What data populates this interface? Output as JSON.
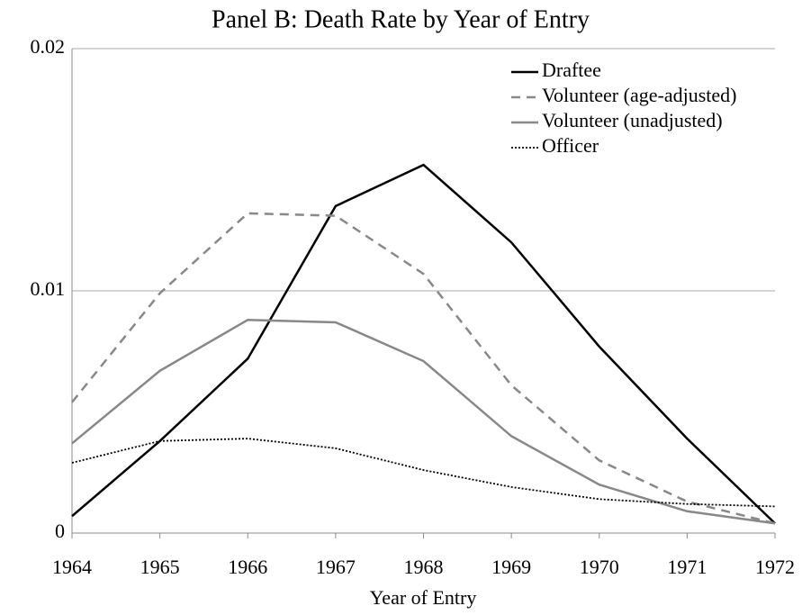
{
  "chart_data": {
    "type": "line",
    "title": "Panel B: Death Rate by Year of Entry",
    "x_label": "Year of Entry",
    "x": [
      1964,
      1965,
      1966,
      1967,
      1968,
      1969,
      1970,
      1971,
      1972
    ],
    "xlim": [
      1964,
      1972
    ],
    "xticks": [
      1964,
      1965,
      1966,
      1967,
      1968,
      1969,
      1970,
      1971,
      1972
    ],
    "ylim": [
      0,
      0.02
    ],
    "yticks": [
      0,
      0.01,
      0.02
    ],
    "grid": true,
    "legend": "top-right",
    "series": [
      {
        "name": "Draftee",
        "color": "#000000",
        "dash": "solid",
        "values": [
          0.0007,
          0.0038,
          0.0072,
          0.0135,
          0.0152,
          0.012,
          0.0077,
          0.0039,
          0.0004
        ]
      },
      {
        "name": "Volunteer (age-adjusted)",
        "color": "#888888",
        "dash": "dashed",
        "values": [
          0.0054,
          0.0099,
          0.0132,
          0.0131,
          0.0107,
          0.0061,
          0.003,
          0.0013,
          0.0004
        ]
      },
      {
        "name": "Volunteer (unadjusted)",
        "color": "#888888",
        "dash": "solid",
        "values": [
          0.0037,
          0.0067,
          0.0088,
          0.0087,
          0.0071,
          0.004,
          0.002,
          0.0009,
          0.0004
        ]
      },
      {
        "name": "Officer",
        "color": "#000000",
        "dash": "dotted",
        "values": [
          0.0029,
          0.0038,
          0.0039,
          0.0035,
          0.0026,
          0.0019,
          0.0014,
          0.0012,
          0.0011
        ]
      }
    ]
  }
}
